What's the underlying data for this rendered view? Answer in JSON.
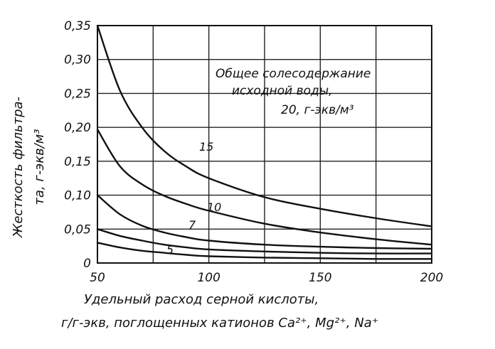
{
  "chart_data": {
    "type": "line",
    "ylabel_line1": "Жесткость фильтра-",
    "ylabel_line2": "та, г-экв/м³",
    "xlabel_line1": "Удельный расход серной кислоты,",
    "xlabel_line2": "г/г-экв, поглощенных катионов Ca²⁺, Mg²⁺, Na⁺",
    "xlim": [
      50,
      200
    ],
    "ylim": [
      0,
      0.35
    ],
    "x_ticks": [
      "50",
      "100",
      "150",
      "200"
    ],
    "y_ticks": [
      "0",
      "0,05",
      "0,10",
      "0,15",
      "0,20",
      "0,25",
      "0,30",
      "0,35"
    ],
    "y_tick_values": [
      0,
      0.05,
      0.1,
      0.15,
      0.2,
      0.25,
      0.3,
      0.35
    ],
    "x_tick_values": [
      50,
      100,
      150,
      200
    ],
    "grid": true,
    "annotation_lines": [
      "Общее солесодержание",
      "исходной воды,",
      "20, г-экв/м³"
    ],
    "series": [
      {
        "name": "20",
        "label": "",
        "x": [
          50,
          60,
          70,
          80,
          90,
          100,
          125,
          150,
          175,
          200
        ],
        "y": [
          0.35,
          0.255,
          0.2,
          0.165,
          0.142,
          0.125,
          0.097,
          0.08,
          0.066,
          0.054
        ]
      },
      {
        "name": "15",
        "label": "15",
        "x": [
          50,
          60,
          70,
          80,
          90,
          100,
          125,
          150,
          175,
          200
        ],
        "y": [
          0.197,
          0.143,
          0.116,
          0.099,
          0.087,
          0.077,
          0.058,
          0.045,
          0.035,
          0.027
        ]
      },
      {
        "name": "10",
        "label": "10",
        "x": [
          50,
          60,
          70,
          80,
          90,
          100,
          125,
          150,
          175,
          200
        ],
        "y": [
          0.1,
          0.072,
          0.055,
          0.045,
          0.038,
          0.033,
          0.027,
          0.024,
          0.022,
          0.021
        ]
      },
      {
        "name": "7",
        "label": "7",
        "x": [
          50,
          60,
          70,
          80,
          90,
          100,
          125,
          150,
          175,
          200
        ],
        "y": [
          0.05,
          0.04,
          0.033,
          0.027,
          0.023,
          0.02,
          0.017,
          0.015,
          0.014,
          0.014
        ]
      },
      {
        "name": "5",
        "label": "5",
        "x": [
          50,
          60,
          70,
          80,
          90,
          100,
          125,
          150,
          175,
          200
        ],
        "y": [
          0.03,
          0.023,
          0.018,
          0.015,
          0.012,
          0.01,
          0.008,
          0.007,
          0.006,
          0.006
        ]
      }
    ]
  }
}
